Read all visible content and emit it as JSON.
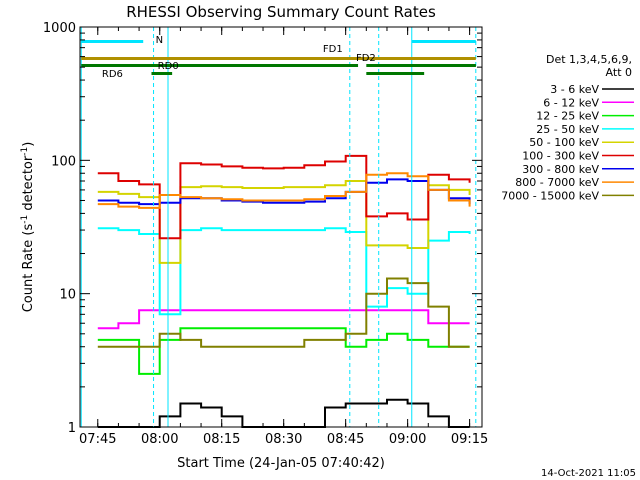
{
  "chart_data": {
    "type": "line",
    "title": "RHESSI Observing Summary Count Rates",
    "xlabel": "Start Time (24-Jan-05 07:40:42)",
    "ylabel_main": "Count Rate (s",
    "ylabel_sup1": "-1",
    "ylabel_mid": " detector",
    "ylabel_sup2": "-1",
    "ylabel_end": ")",
    "yscale": "log",
    "ylim": [
      1,
      1000
    ],
    "xlim": [
      "07:40:42",
      "09:18:00"
    ],
    "x_ticks": [
      "07:45",
      "08:00",
      "08:15",
      "08:30",
      "08:45",
      "09:00",
      "09:15"
    ],
    "y_ticks": [
      "1",
      "10",
      "100",
      "1000"
    ],
    "footer_date": "14-Oct-2021 11:05",
    "legend_header_1": "Det 1,3,4,5,6,9,",
    "legend_header_2": "Att 0",
    "flag_labels": {
      "n": "N",
      "fd1": "FD1",
      "fd2": "FD2",
      "rd0": "RD0",
      "rd6": "RD6"
    },
    "series": [
      {
        "name": "3 - 6 keV",
        "color": "#000000",
        "x": [
          "07:45",
          "07:50",
          "07:55",
          "08:00",
          "08:05",
          "08:10",
          "08:15",
          "08:20",
          "08:25",
          "08:30",
          "08:35",
          "08:40",
          "08:45",
          "08:50",
          "08:55",
          "09:00",
          "09:05",
          "09:10",
          "09:15"
        ],
        "y": [
          1,
          1,
          1,
          1.2,
          1.5,
          1.4,
          1.2,
          1,
          1,
          1,
          1,
          1.4,
          1.5,
          1.5,
          1.6,
          1.5,
          1.2,
          1,
          1
        ]
      },
      {
        "name": "6 - 12 keV",
        "color": "#ff00ff",
        "x": [
          "07:45",
          "07:50",
          "07:55",
          "08:00",
          "08:05",
          "08:10",
          "08:15",
          "08:20",
          "08:25",
          "08:30",
          "08:35",
          "08:40",
          "08:45",
          "08:50",
          "08:55",
          "09:00",
          "09:05",
          "09:10",
          "09:15"
        ],
        "y": [
          5.5,
          6,
          7.5,
          7.5,
          7.5,
          7.5,
          7.5,
          7.5,
          7.5,
          7.5,
          7.5,
          7.5,
          7.5,
          7.5,
          7.5,
          7.5,
          6,
          6,
          6
        ]
      },
      {
        "name": "12 - 25 keV",
        "color": "#00ee00",
        "x": [
          "07:45",
          "07:50",
          "07:55",
          "08:00",
          "08:05",
          "08:10",
          "08:15",
          "08:20",
          "08:25",
          "08:30",
          "08:35",
          "08:40",
          "08:45",
          "08:50",
          "08:55",
          "09:00",
          "09:05",
          "09:10",
          "09:15"
        ],
        "y": [
          4.5,
          4.5,
          2.5,
          4.5,
          5.5,
          5.5,
          5.5,
          5.5,
          5.5,
          5.5,
          5.5,
          5.5,
          4,
          4.5,
          5,
          4.5,
          4,
          4,
          4
        ]
      },
      {
        "name": "25 - 50 keV",
        "color": "#00ffff",
        "x": [
          "07:45",
          "07:50",
          "07:55",
          "08:00",
          "08:05",
          "08:10",
          "08:15",
          "08:20",
          "08:25",
          "08:30",
          "08:35",
          "08:40",
          "08:45",
          "08:50",
          "08:55",
          "09:00",
          "09:05",
          "09:10",
          "09:15"
        ],
        "y": [
          31,
          30,
          28,
          7,
          30,
          31,
          30,
          30,
          30,
          30,
          30,
          31,
          29,
          8,
          11,
          10,
          25,
          29,
          28
        ]
      },
      {
        "name": "50 - 100 keV",
        "color": "#d4d400",
        "x": [
          "07:45",
          "07:50",
          "07:55",
          "08:00",
          "08:05",
          "08:10",
          "08:15",
          "08:20",
          "08:25",
          "08:30",
          "08:35",
          "08:40",
          "08:45",
          "08:50",
          "08:55",
          "09:00",
          "09:05",
          "09:10",
          "09:15"
        ],
        "y": [
          58,
          56,
          53,
          17,
          63,
          64,
          63,
          62,
          62,
          63,
          63,
          65,
          70,
          23,
          23,
          22,
          65,
          60,
          55
        ]
      },
      {
        "name": "100 - 300 keV",
        "color": "#dd0000",
        "x": [
          "07:45",
          "07:50",
          "07:55",
          "08:00",
          "08:05",
          "08:10",
          "08:15",
          "08:20",
          "08:25",
          "08:30",
          "08:35",
          "08:40",
          "08:45",
          "08:50",
          "08:55",
          "09:00",
          "09:05",
          "09:10",
          "09:15"
        ],
        "y": [
          80,
          70,
          66,
          26,
          95,
          93,
          90,
          88,
          87,
          88,
          92,
          98,
          108,
          38,
          40,
          36,
          78,
          72,
          68
        ]
      },
      {
        "name": "300 - 800 keV",
        "color": "#0000ee",
        "x": [
          "07:45",
          "07:50",
          "07:55",
          "08:00",
          "08:05",
          "08:10",
          "08:15",
          "08:20",
          "08:25",
          "08:30",
          "08:35",
          "08:40",
          "08:45",
          "08:50",
          "08:55",
          "09:00",
          "09:05",
          "09:10",
          "09:15"
        ],
        "y": [
          50,
          48,
          47,
          48,
          52,
          52,
          50,
          49,
          48,
          48,
          49,
          52,
          58,
          68,
          72,
          70,
          60,
          52,
          47
        ]
      },
      {
        "name": "800 - 7000 keV",
        "color": "#ff8800",
        "x": [
          "07:45",
          "07:50",
          "07:55",
          "08:00",
          "08:05",
          "08:10",
          "08:15",
          "08:20",
          "08:25",
          "08:30",
          "08:35",
          "08:40",
          "08:45",
          "08:50",
          "08:55",
          "09:00",
          "09:05",
          "09:10",
          "09:15"
        ],
        "y": [
          47,
          45,
          44,
          55,
          53,
          52,
          51,
          50,
          50,
          50,
          51,
          54,
          58,
          78,
          80,
          76,
          60,
          50,
          45
        ]
      },
      {
        "name": "7000 - 15000 keV",
        "color": "#808000",
        "x": [
          "07:45",
          "07:50",
          "07:55",
          "08:00",
          "08:05",
          "08:10",
          "08:15",
          "08:20",
          "08:25",
          "08:30",
          "08:35",
          "08:40",
          "08:45",
          "08:50",
          "08:55",
          "09:00",
          "09:05",
          "09:10",
          "09:15"
        ],
        "y": [
          4,
          4,
          4,
          5,
          4.5,
          4,
          4,
          4,
          4,
          4,
          4.5,
          4.5,
          5,
          10,
          13,
          12,
          8,
          4,
          4
        ]
      }
    ]
  }
}
